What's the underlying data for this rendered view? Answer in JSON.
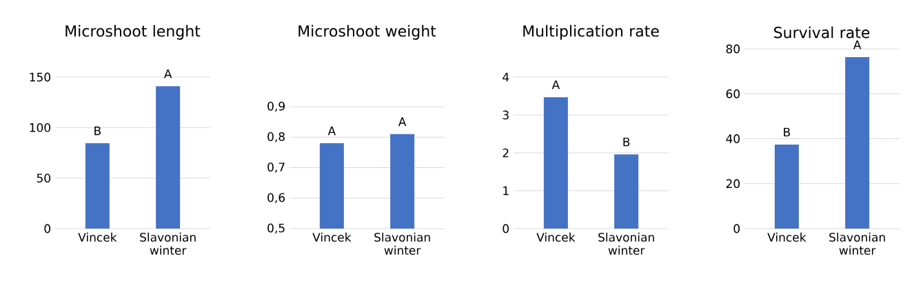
{
  "chart_data": [
    {
      "type": "bar",
      "title": "Microshoot lenght",
      "categories": [
        "Vincek",
        "Slavonian winter"
      ],
      "values": [
        84.5,
        141
      ],
      "color": "#4472c4",
      "ylim": [
        0,
        150
      ],
      "yticks": [
        0,
        50,
        100,
        150
      ],
      "grid": "y",
      "annotations": [
        {
          "text": "B",
          "x": "Vincek",
          "y": 84.5
        },
        {
          "text": "A",
          "x": "Slavonian winter",
          "y": 141
        }
      ]
    },
    {
      "type": "bar",
      "title": "Microshoot weight",
      "categories": [
        "Vincek",
        "Slavonian winter"
      ],
      "values": [
        0.78,
        0.81
      ],
      "color": "#4472c4",
      "ylim": [
        0.5,
        0.9
      ],
      "yticks": [
        {
          "value": 0.5,
          "label": "0,5"
        },
        {
          "value": 0.6,
          "label": "0,6"
        },
        {
          "value": 0.7,
          "label": "0,7"
        },
        {
          "value": 0.8,
          "label": "0,8"
        },
        {
          "value": 0.9,
          "label": "0,9"
        }
      ],
      "grid": "y",
      "annotations": [
        {
          "text": "A",
          "x": "Vincek",
          "y": 0.78
        },
        {
          "text": "A",
          "x": "Slavonian winter",
          "y": 0.81
        }
      ]
    },
    {
      "type": "bar",
      "title": "Multiplication rate",
      "categories": [
        "Vincek",
        "Slavonian winter"
      ],
      "values": [
        3.47,
        1.96
      ],
      "color": "#4472c4",
      "ylim": [
        0,
        4
      ],
      "yticks": [
        0,
        1,
        2,
        3,
        4
      ],
      "grid": "y",
      "annotations": [
        {
          "text": "A",
          "x": "Vincek",
          "y": 3.47
        },
        {
          "text": "B",
          "x": "Slavonian winter",
          "y": 1.96
        }
      ]
    },
    {
      "type": "bar",
      "title": "Survival rate",
      "categories": [
        "Vincek",
        "Slavonian winter"
      ],
      "values": [
        37.4,
        76.3
      ],
      "color": "#4472c4",
      "ylim": [
        0,
        80
      ],
      "yticks": [
        0,
        20,
        40,
        60,
        80
      ],
      "grid": "y",
      "annotations": [
        {
          "text": "B",
          "x": "Vincek",
          "y": 37.4
        },
        {
          "text": "A",
          "x": "Slavonian winter",
          "y": 76.3
        }
      ]
    }
  ]
}
